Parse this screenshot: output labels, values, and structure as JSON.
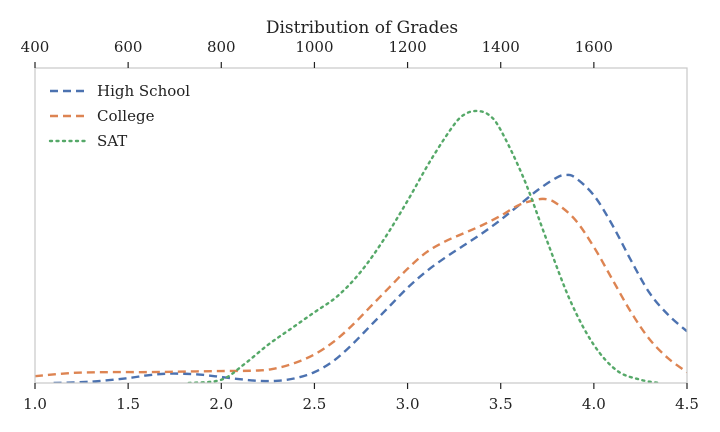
{
  "chart_data": {
    "type": "line",
    "title": "Distribution of Grades",
    "xlabel": "",
    "ylabel": "",
    "grid": false,
    "legend_position": "upper-left",
    "x_bottom": {
      "range": [
        1.0,
        4.5
      ],
      "ticks": [
        1.0,
        1.5,
        2.0,
        2.5,
        3.0,
        3.5,
        4.0,
        4.5
      ],
      "tick_labels": [
        "1.0",
        "1.5",
        "2.0",
        "2.5",
        "3.0",
        "3.5",
        "4.0",
        "4.5"
      ]
    },
    "x_top": {
      "range": [
        400,
        1800
      ],
      "ticks": [
        400,
        600,
        800,
        1000,
        1200,
        1400,
        1600
      ],
      "tick_labels": [
        "400",
        "600",
        "800",
        "1000",
        "1200",
        "1400",
        "1600"
      ]
    },
    "y_range": [
      0,
      1.0
    ],
    "series": [
      {
        "name": "High School",
        "axis": "bottom",
        "color": "#4c72b0",
        "dash": "dashed",
        "x": [
          1.1,
          1.3,
          1.5,
          1.6,
          1.7,
          1.8,
          1.9,
          2.0,
          2.1,
          2.2,
          2.3,
          2.4,
          2.5,
          2.6,
          2.7,
          2.8,
          2.9,
          3.0,
          3.1,
          3.2,
          3.3,
          3.4,
          3.5,
          3.6,
          3.7,
          3.8,
          3.85,
          3.9,
          4.0,
          4.1,
          4.2,
          4.3,
          4.4,
          4.5
        ],
        "y": [
          0.0,
          0.005,
          0.018,
          0.028,
          0.034,
          0.034,
          0.03,
          0.022,
          0.014,
          0.008,
          0.008,
          0.018,
          0.04,
          0.08,
          0.14,
          0.21,
          0.28,
          0.35,
          0.41,
          0.46,
          0.505,
          0.55,
          0.6,
          0.655,
          0.71,
          0.755,
          0.765,
          0.755,
          0.69,
          0.58,
          0.45,
          0.33,
          0.25,
          0.19
        ]
      },
      {
        "name": "College",
        "axis": "bottom",
        "color": "#dd8452",
        "dash": "dashed",
        "x": [
          1.0,
          1.2,
          1.4,
          1.6,
          1.8,
          2.0,
          2.2,
          2.3,
          2.4,
          2.5,
          2.6,
          2.7,
          2.8,
          2.9,
          3.0,
          3.1,
          3.2,
          3.3,
          3.4,
          3.5,
          3.6,
          3.7,
          3.75,
          3.8,
          3.9,
          4.0,
          4.1,
          4.2,
          4.3,
          4.4,
          4.5
        ],
        "y": [
          0.025,
          0.037,
          0.04,
          0.04,
          0.042,
          0.044,
          0.046,
          0.055,
          0.075,
          0.105,
          0.15,
          0.21,
          0.28,
          0.35,
          0.42,
          0.48,
          0.52,
          0.55,
          0.58,
          0.615,
          0.655,
          0.675,
          0.675,
          0.66,
          0.6,
          0.5,
          0.38,
          0.26,
          0.16,
          0.09,
          0.04
        ]
      },
      {
        "name": "SAT",
        "axis": "top",
        "color": "#55a868",
        "dash": "dotted",
        "x": [
          730,
          800,
          850,
          900,
          950,
          1000,
          1050,
          1100,
          1150,
          1200,
          1250,
          1300,
          1325,
          1350,
          1375,
          1400,
          1450,
          1500,
          1550,
          1600,
          1650,
          1700,
          1740
        ],
        "y": [
          0.0,
          0.012,
          0.07,
          0.14,
          0.2,
          0.26,
          0.32,
          0.41,
          0.53,
          0.67,
          0.82,
          0.95,
          0.99,
          1.0,
          0.985,
          0.93,
          0.75,
          0.52,
          0.3,
          0.14,
          0.045,
          0.012,
          0.0
        ]
      }
    ]
  }
}
